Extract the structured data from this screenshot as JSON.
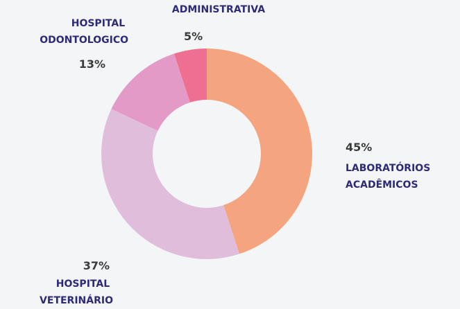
{
  "chart_data": {
    "type": "donut",
    "categories": [
      "LABORATÓRIOS ACADÊMICOS",
      "HOSPITAL VETERINÁRIO",
      "HOSPITAL ODONTOLOGICO",
      "ADMINISTRATIVA"
    ],
    "values": [
      45,
      37,
      13,
      5
    ],
    "value_labels": [
      "45%",
      "37%",
      "13%",
      "5%"
    ],
    "colors": [
      "#f4a57f",
      "#e0bedb",
      "#e39ac6",
      "#ee6f8f"
    ]
  }
}
